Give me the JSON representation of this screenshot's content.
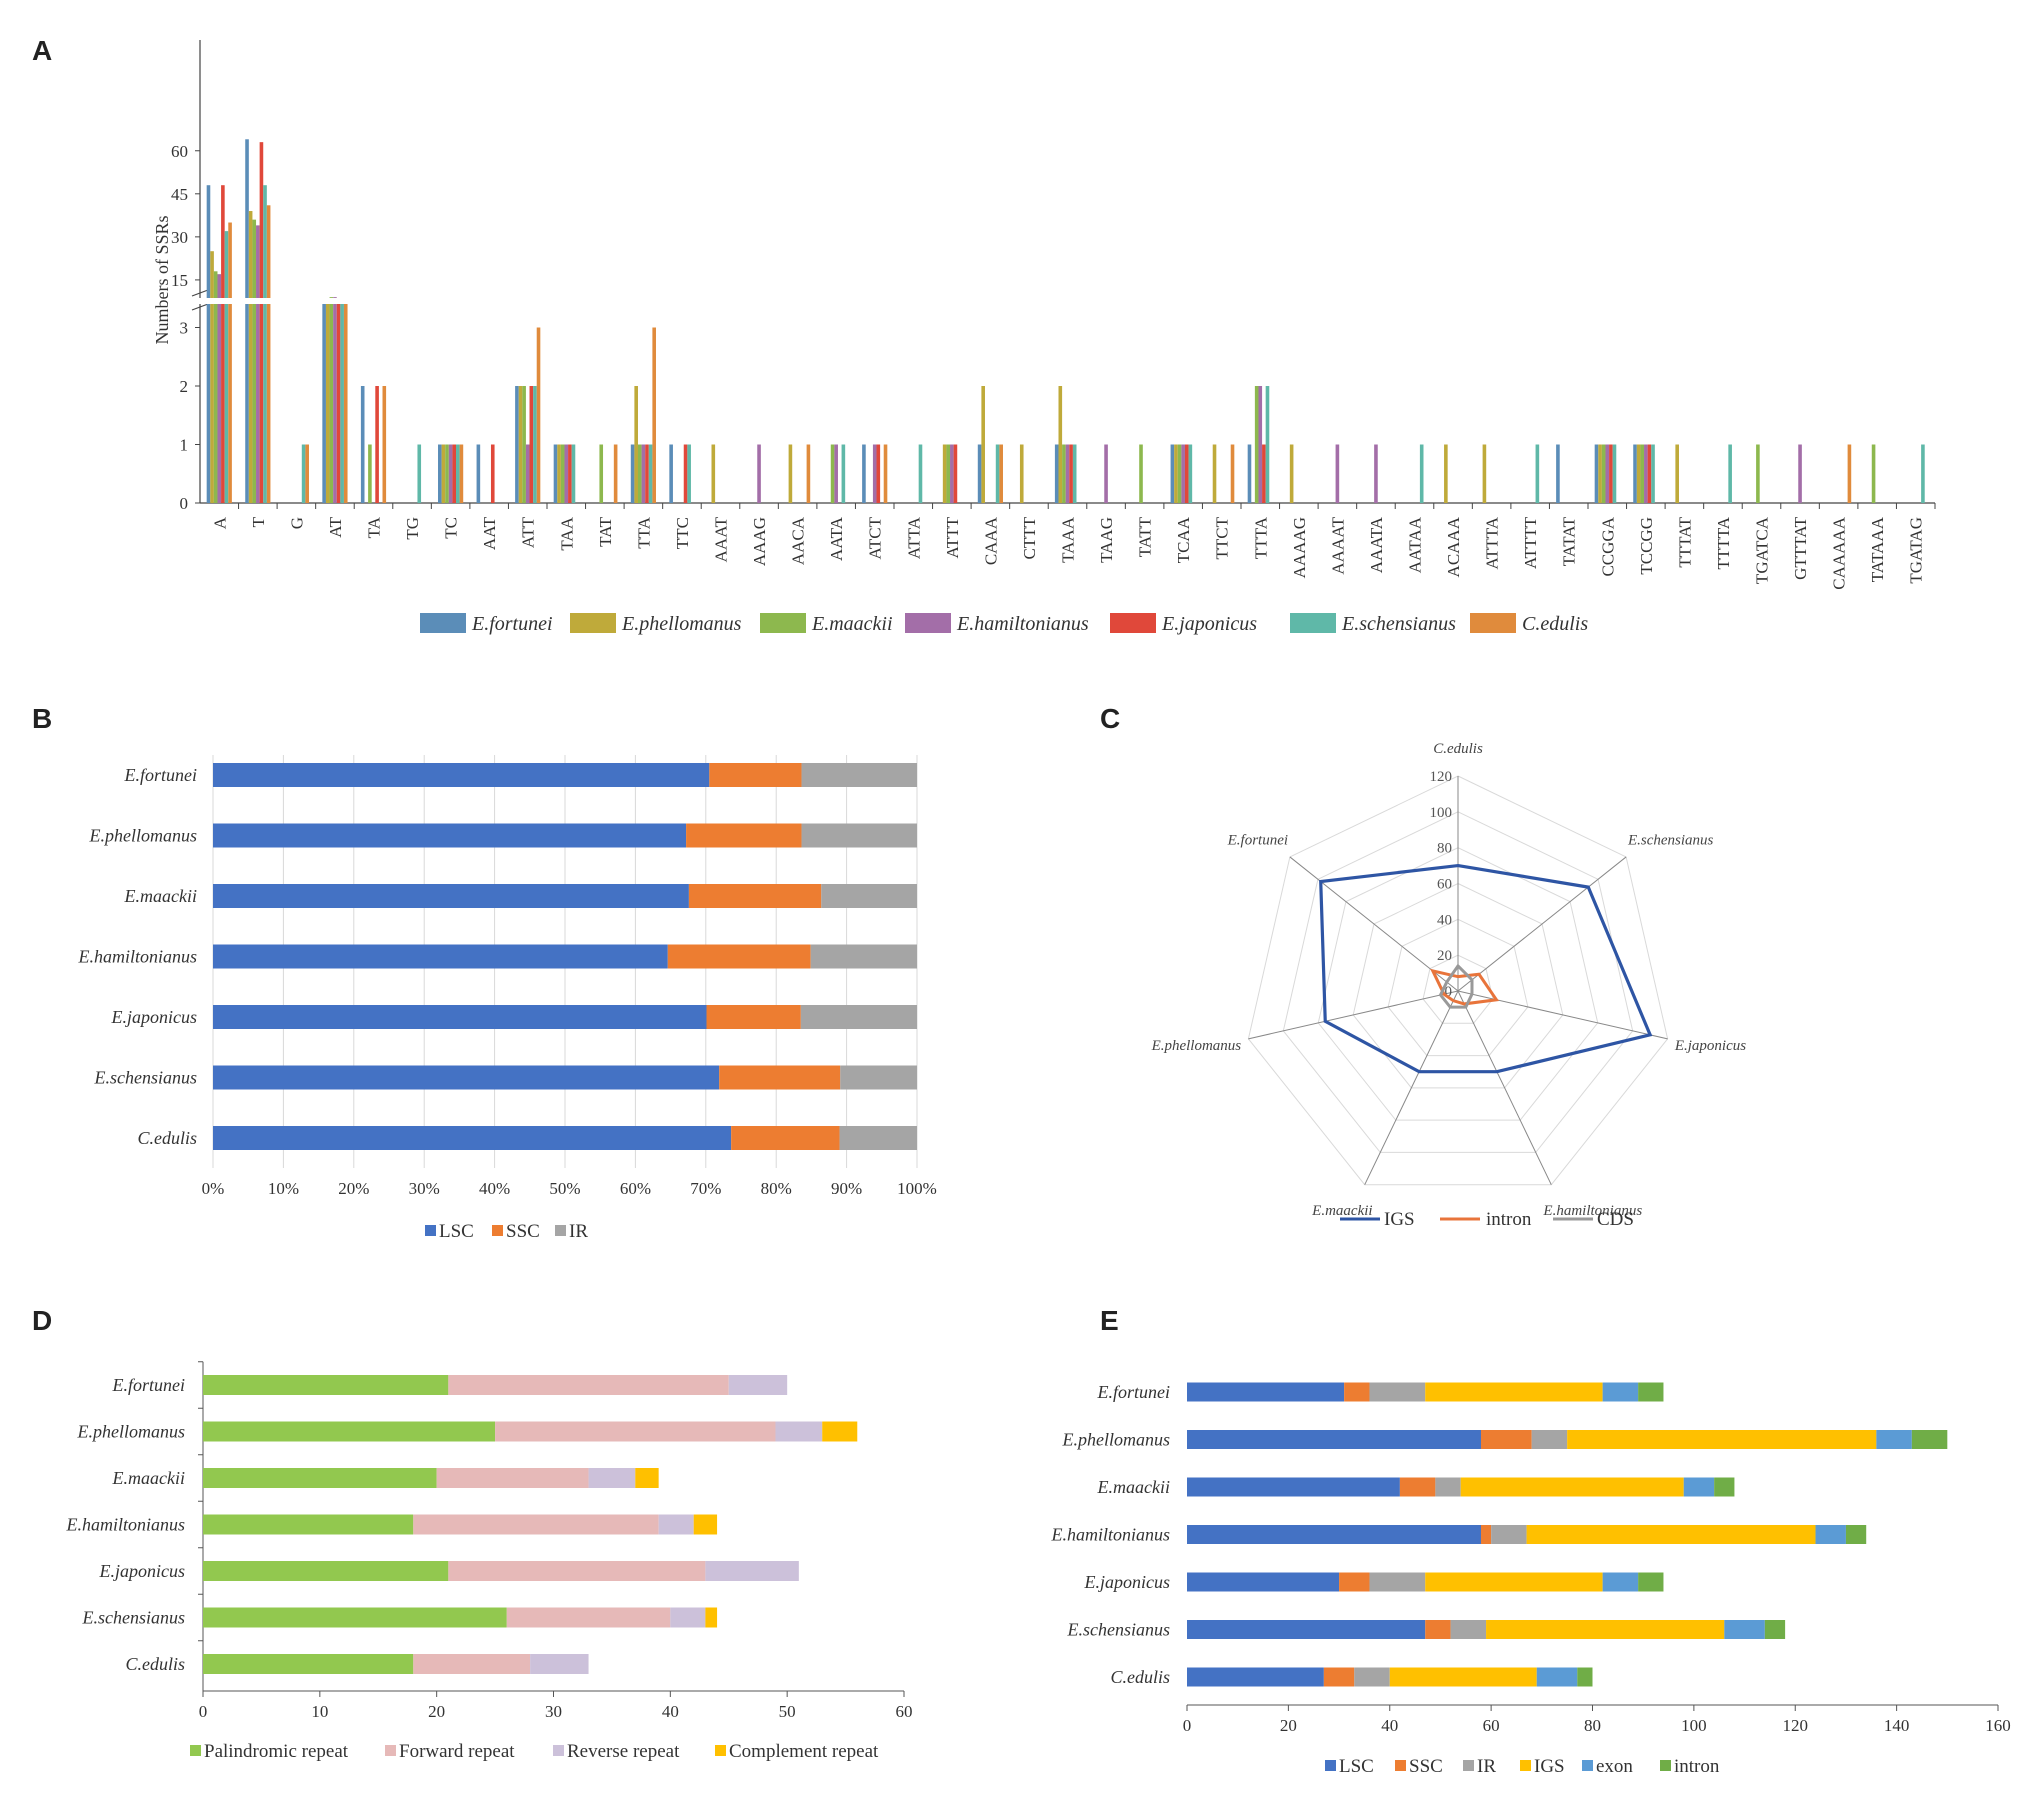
{
  "chart_data": [
    {
      "panel": "A",
      "type": "bar",
      "ylabel": "Numbers of SSRs",
      "upper_ticks": [
        15,
        30,
        45,
        60
      ],
      "lower_ticks": [
        0,
        1,
        2,
        3
      ],
      "categories": [
        "A",
        "T",
        "G",
        "AT",
        "TA",
        "TG",
        "TC",
        "AAT",
        "ATT",
        "TAA",
        "TAT",
        "TTA",
        "TTC",
        "AAAT",
        "AAAG",
        "AACA",
        "AATA",
        "ATCT",
        "ATTA",
        "ATTT",
        "CAAA",
        "CTTT",
        "TAAA",
        "TAAG",
        "TATT",
        "TCAA",
        "TTCT",
        "TTTA",
        "AAAAG",
        "AAAAT",
        "AAATA",
        "AATAA",
        "ACAAA",
        "ATTTA",
        "ATTTT",
        "TATAT",
        "CCGGA",
        "TCCGG",
        "TTTAT",
        "TTTTA",
        "TGATCA",
        "GTTTAT",
        "CAAAAA",
        "TATAAA",
        "TGATAG"
      ],
      "series": [
        {
          "name": "E.fortunei",
          "color": "#5b8db8",
          "values": [
            48,
            64,
            0,
            7,
            2,
            0,
            1,
            1,
            2,
            1,
            0,
            1,
            1,
            0,
            0,
            0,
            0,
            1,
            0,
            0,
            1,
            0,
            1,
            0,
            0,
            1,
            0,
            1,
            0,
            0,
            0,
            0,
            0,
            0,
            0,
            1,
            1,
            1,
            0,
            0,
            0,
            0,
            0,
            0,
            0
          ]
        },
        {
          "name": "E.phellomanus",
          "color": "#bfaa3a",
          "values": [
            25,
            39,
            0,
            8,
            0,
            0,
            1,
            0,
            2,
            1,
            0,
            2,
            0,
            1,
            0,
            1,
            0,
            0,
            0,
            1,
            2,
            1,
            2,
            0,
            0,
            1,
            1,
            0,
            1,
            0,
            0,
            0,
            1,
            1,
            0,
            0,
            1,
            1,
            1,
            0,
            0,
            0,
            0,
            0,
            0
          ]
        },
        {
          "name": "E.maackii",
          "color": "#8db84e",
          "values": [
            18,
            36,
            0,
            9,
            1,
            0,
            1,
            0,
            2,
            1,
            1,
            1,
            0,
            0,
            0,
            0,
            1,
            0,
            0,
            1,
            0,
            0,
            1,
            0,
            1,
            1,
            0,
            2,
            0,
            0,
            0,
            0,
            0,
            0,
            0,
            0,
            1,
            1,
            0,
            0,
            1,
            0,
            0,
            1,
            0
          ]
        },
        {
          "name": "E.hamiltonianus",
          "color": "#a36ea8",
          "values": [
            17,
            34,
            0,
            9,
            0,
            0,
            1,
            0,
            1,
            1,
            0,
            1,
            0,
            0,
            1,
            0,
            1,
            1,
            0,
            1,
            0,
            0,
            1,
            1,
            0,
            1,
            0,
            2,
            0,
            1,
            1,
            0,
            0,
            0,
            0,
            0,
            1,
            1,
            0,
            0,
            0,
            1,
            0,
            0,
            0
          ]
        },
        {
          "name": "E.japonicus",
          "color": "#e0483a",
          "values": [
            48,
            63,
            0,
            7,
            2,
            0,
            1,
            1,
            2,
            1,
            0,
            1,
            1,
            0,
            0,
            0,
            0,
            1,
            0,
            1,
            0,
            0,
            1,
            0,
            0,
            1,
            0,
            1,
            0,
            0,
            0,
            0,
            0,
            0,
            0,
            0,
            1,
            1,
            0,
            0,
            0,
            0,
            0,
            0,
            0
          ]
        },
        {
          "name": "E.schensianus",
          "color": "#5fb8a8",
          "values": [
            32,
            48,
            1,
            8,
            0,
            1,
            1,
            0,
            2,
            1,
            0,
            1,
            1,
            0,
            0,
            0,
            1,
            0,
            1,
            0,
            1,
            0,
            1,
            0,
            0,
            1,
            0,
            2,
            0,
            0,
            0,
            1,
            0,
            0,
            1,
            0,
            1,
            1,
            0,
            1,
            0,
            0,
            0,
            0,
            1
          ]
        },
        {
          "name": "C.edulis",
          "color": "#e08b3c",
          "values": [
            35,
            41,
            1,
            7,
            2,
            0,
            1,
            0,
            3,
            0,
            1,
            3,
            0,
            0,
            0,
            1,
            0,
            1,
            0,
            0,
            1,
            0,
            0,
            0,
            0,
            0,
            1,
            0,
            0,
            0,
            0,
            0,
            0,
            0,
            0,
            0,
            0,
            0,
            0,
            0,
            0,
            0,
            1,
            0,
            0
          ]
        }
      ]
    },
    {
      "panel": "B",
      "type": "bar",
      "orientation": "horizontal-stacked-percent",
      "categories": [
        "E.fortunei",
        "E.phellomanus",
        "E.maackii",
        "E.hamiltonianus",
        "E.japonicus",
        "E.schensianus",
        "C.edulis"
      ],
      "xticks": [
        "0%",
        "10%",
        "20%",
        "30%",
        "40%",
        "50%",
        "60%",
        "70%",
        "80%",
        "90%",
        "100%"
      ],
      "series": [
        {
          "name": "LSC",
          "color": "#4472c4",
          "values": [
            70.5,
            67.2,
            67.6,
            64.6,
            70.1,
            71.9,
            73.6
          ]
        },
        {
          "name": "SSC",
          "color": "#ed7d31",
          "values": [
            13.1,
            16.4,
            18.8,
            20.3,
            13.4,
            17.2,
            15.4
          ]
        },
        {
          "name": "IR",
          "color": "#a5a5a5",
          "values": [
            16.4,
            16.4,
            13.6,
            15.1,
            16.5,
            10.9,
            11.0
          ]
        }
      ]
    },
    {
      "panel": "C",
      "type": "radar",
      "axes": [
        "C.edulis",
        "E.schensianus",
        "E.japonicus",
        "E.hamiltonianus",
        "E.maackii",
        "E.phellomanus",
        "E.fortunei"
      ],
      "rticks": [
        0,
        20,
        40,
        60,
        80,
        100,
        120
      ],
      "rmax": 120,
      "series": [
        {
          "name": "IGS",
          "color": "#2e55a4",
          "values": [
            70,
            93,
            110,
            50,
            50,
            76,
            98
          ]
        },
        {
          "name": "intron",
          "color": "#e8743b",
          "values": [
            8,
            15,
            22,
            8,
            6,
            8,
            18
          ]
        },
        {
          "name": "CDS",
          "color": "#999999",
          "values": [
            14,
            10,
            8,
            10,
            10,
            10,
            8
          ]
        }
      ]
    },
    {
      "panel": "D",
      "type": "bar",
      "orientation": "horizontal-stacked",
      "categories": [
        "E.fortunei",
        "E.phellomanus",
        "E.maackii",
        "E.hamiltonianus",
        "E.japonicus",
        "E.schensianus",
        "C.edulis"
      ],
      "xlim": [
        0,
        60
      ],
      "xticks": [
        0,
        10,
        20,
        30,
        40,
        50,
        60
      ],
      "series": [
        {
          "name": "Palindromic repeat",
          "color": "#92c84f",
          "values": [
            21,
            25,
            20,
            18,
            21,
            26,
            18
          ]
        },
        {
          "name": "Forward repeat",
          "color": "#e6b9b8",
          "values": [
            24,
            24,
            13,
            21,
            22,
            14,
            10
          ]
        },
        {
          "name": "Reverse repeat",
          "color": "#ccc1da",
          "values": [
            5,
            4,
            4,
            3,
            8,
            3,
            5
          ]
        },
        {
          "name": "Complement repeat",
          "color": "#ffc000",
          "values": [
            0,
            3,
            2,
            2,
            0,
            1,
            0
          ]
        }
      ]
    },
    {
      "panel": "E",
      "type": "bar",
      "orientation": "horizontal-stacked",
      "categories": [
        "E.fortunei",
        "E.phellomanus",
        "E.maackii",
        "E.hamiltonianus",
        "E.japonicus",
        "E.schensianus",
        "C.edulis"
      ],
      "xlim": [
        0,
        160
      ],
      "xticks": [
        0,
        20,
        40,
        60,
        80,
        100,
        120,
        140,
        160
      ],
      "series": [
        {
          "name": "LSC",
          "color": "#4472c4",
          "values": [
            31,
            58,
            42,
            58,
            30,
            47,
            27
          ]
        },
        {
          "name": "SSC",
          "color": "#ed7d31",
          "values": [
            5,
            10,
            7,
            2,
            6,
            5,
            6
          ]
        },
        {
          "name": "IR",
          "color": "#a5a5a5",
          "values": [
            11,
            7,
            5,
            7,
            11,
            7,
            7
          ]
        },
        {
          "name": "IGS",
          "color": "#ffc000",
          "values": [
            35,
            61,
            44,
            57,
            35,
            47,
            29
          ]
        },
        {
          "name": "exon",
          "color": "#5b9bd5",
          "values": [
            7,
            7,
            6,
            6,
            7,
            8,
            8
          ]
        },
        {
          "name": "intron",
          "color": "#70ad47",
          "values": [
            5,
            7,
            4,
            4,
            5,
            4,
            3
          ]
        }
      ]
    }
  ],
  "panels": {
    "A": "A",
    "B": "B",
    "C": "C",
    "D": "D",
    "E": "E"
  }
}
